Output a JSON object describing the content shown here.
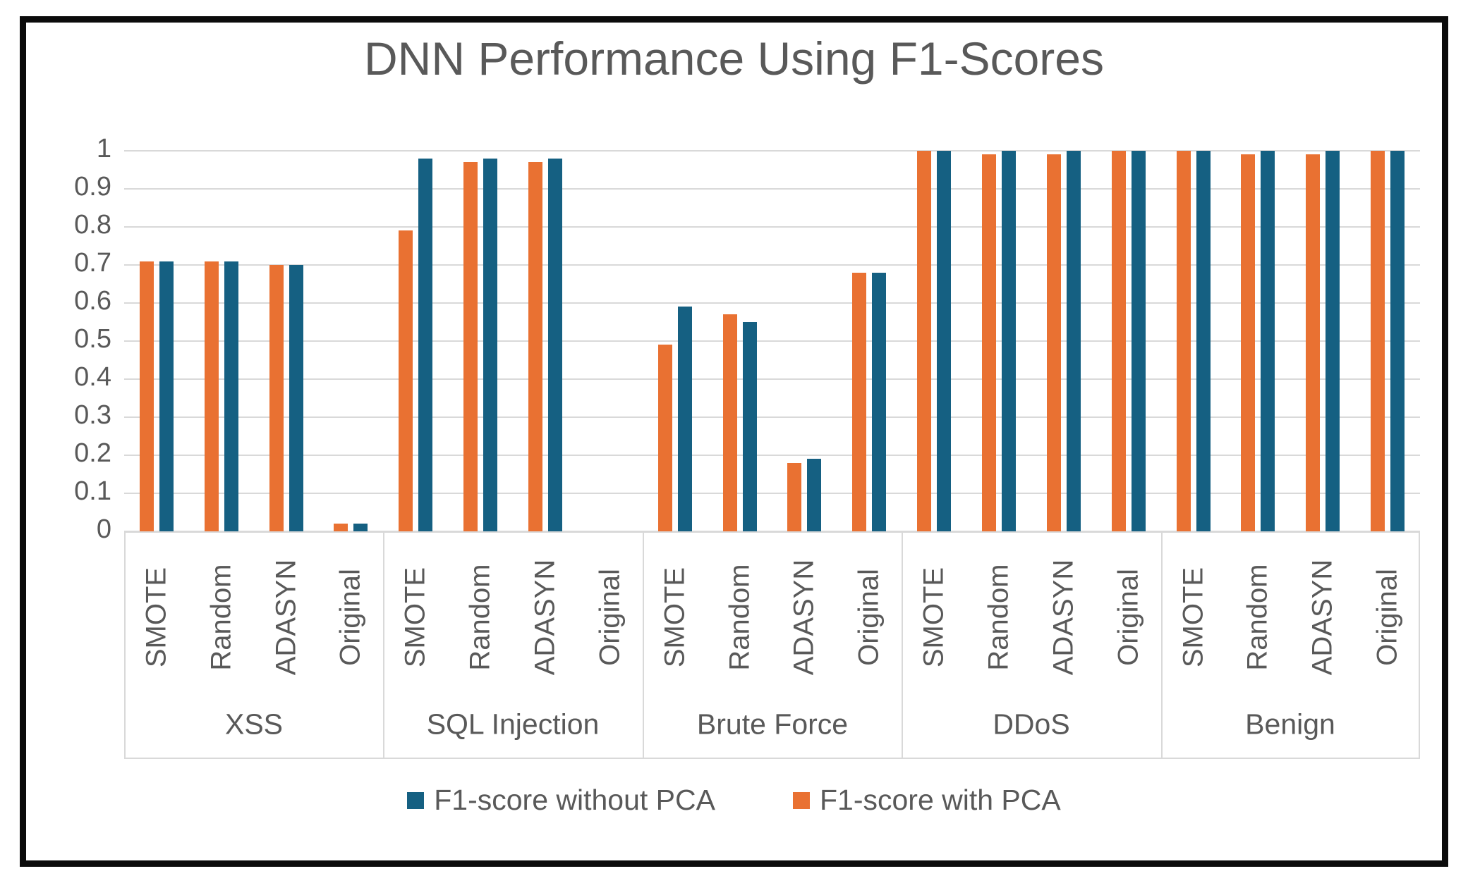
{
  "chart_data": {
    "type": "bar",
    "title": "DNN Performance Using F1-Scores",
    "groups": [
      "XSS",
      "SQL Injection",
      "Brute Force",
      "DDoS",
      "Benign"
    ],
    "subgroups": [
      "SMOTE",
      "Random",
      "ADASYN",
      "Original"
    ],
    "series": [
      {
        "name": "F1-score with PCA",
        "color": "#E97132",
        "values": [
          [
            0.71,
            0.71,
            0.7,
            0.02
          ],
          [
            0.79,
            0.97,
            0.97,
            0
          ],
          [
            0.49,
            0.57,
            0.18,
            0.68
          ],
          [
            1.0,
            0.99,
            0.99,
            1.0
          ],
          [
            1.0,
            0.99,
            0.99,
            1.0
          ]
        ]
      },
      {
        "name": "F1-score without PCA",
        "color": "#156082",
        "values": [
          [
            0.71,
            0.71,
            0.7,
            0.02
          ],
          [
            0.98,
            0.98,
            0.98,
            0
          ],
          [
            0.59,
            0.55,
            0.19,
            0.68
          ],
          [
            1.0,
            1.0,
            1.0,
            1.0
          ],
          [
            1.0,
            1.0,
            1.0,
            1.0
          ]
        ]
      }
    ],
    "legend": [
      {
        "label": "F1-score without PCA",
        "color": "#156082"
      },
      {
        "label": "F1-score with PCA",
        "color": "#E97132"
      }
    ],
    "y_ticks": [
      "1",
      "0.9",
      "0.8",
      "0.7",
      "0.6",
      "0.5",
      "0.4",
      "0.3",
      "0.2",
      "0.1",
      "0"
    ],
    "ylim": [
      0,
      1
    ],
    "grid": true,
    "legend_position": "bottom",
    "colors": {
      "gridline": "#d9d9d9",
      "text": "#595959",
      "frame_border": "#0b0b0b"
    }
  }
}
